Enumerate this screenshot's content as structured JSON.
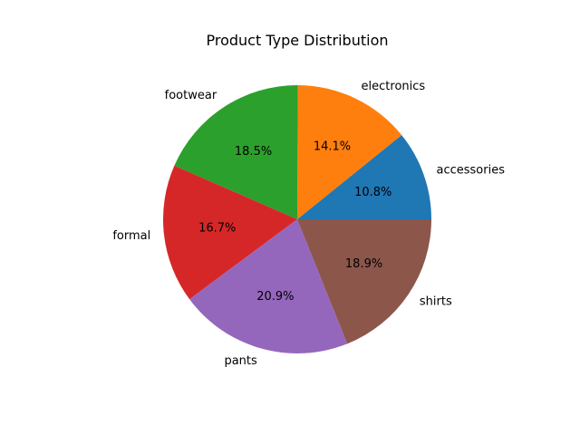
{
  "chart_data": {
    "type": "pie",
    "title": "Product Type Distribution",
    "categories": [
      "accessories",
      "electronics",
      "footwear",
      "formal",
      "pants",
      "shirts"
    ],
    "values": [
      10.8,
      14.1,
      18.5,
      16.7,
      20.9,
      18.9
    ],
    "value_labels": [
      "10.8%",
      "14.1%",
      "18.5%",
      "16.7%",
      "20.9%",
      "18.9%"
    ],
    "colors": [
      "#1f77b4",
      "#ff7f0e",
      "#2ca02c",
      "#d62728",
      "#9467bd",
      "#8c564b"
    ],
    "start_angle_deg": 0,
    "direction": "counterclockwise",
    "legend": "none"
  }
}
